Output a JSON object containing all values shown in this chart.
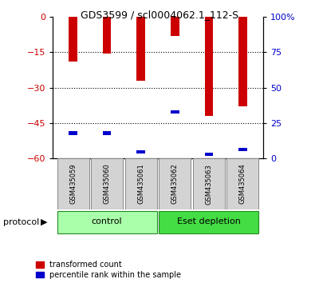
{
  "title": "GDS3599 / scl0004062.1_112-S",
  "samples": [
    "GSM435059",
    "GSM435060",
    "GSM435061",
    "GSM435062",
    "GSM435063",
    "GSM435064"
  ],
  "red_bar_tops": [
    -19,
    -15.5,
    -27,
    -8,
    -42,
    -38
  ],
  "blue_bar_values": [
    -50,
    -50,
    -58,
    -41,
    -59,
    -57
  ],
  "blue_bar_height": 1.5,
  "ylim_left": [
    -60,
    0
  ],
  "yticks_left": [
    0,
    -15,
    -30,
    -45,
    -60
  ],
  "ylim_right": [
    0,
    100
  ],
  "yticks_right": [
    0,
    25,
    50,
    75,
    100
  ],
  "groups": [
    {
      "label": "control",
      "samples": [
        0,
        1,
        2
      ],
      "color": "#AAFFAA"
    },
    {
      "label": "Eset depletion",
      "samples": [
        3,
        4,
        5
      ],
      "color": "#44DD44"
    }
  ],
  "bar_width": 0.25,
  "red_color": "#CC0000",
  "blue_color": "#0000CC",
  "legend_red": "transformed count",
  "legend_blue": "percentile rank within the sample",
  "protocol_label": "protocol",
  "background_color": "#ffffff",
  "tick_label_color_left": "#CC0000",
  "tick_label_color_right": "#0000CC",
  "title_fontsize": 9,
  "tick_fontsize": 8,
  "sample_fontsize": 6,
  "legend_fontsize": 7,
  "group_fontsize": 8
}
